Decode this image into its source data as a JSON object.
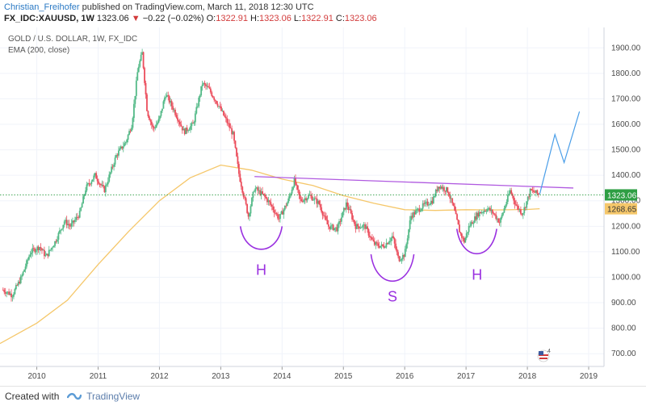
{
  "header": {
    "author": "Christian_Freihofer",
    "published": "published on TradingView.com, March 11, 2018 12:30 UTC",
    "symbol": "FX_IDC:XAUUSD, 1W",
    "last": "1323.06",
    "change_arrow": "down-triangle-icon",
    "change": "−0.22 (−0.02%)",
    "o_label": "O:",
    "o_value": "1322.91",
    "h_label": "H:",
    "h_value": "1323.06",
    "l_label": "L:",
    "l_value": "1322.91",
    "c_label": "C:",
    "c_value": "1323.06"
  },
  "legend": {
    "line1": "GOLD / U.S. DOLLAR, 1W, FX_IDC",
    "line2": "EMA (200, close)"
  },
  "footer": {
    "created_with": "Created with",
    "brand": "TradingView"
  },
  "colors": {
    "up": "#53b987",
    "down": "#eb4d5c",
    "ema": "#f5c76a",
    "trendline": "#b05ae0",
    "projection": "#4a9ee8",
    "pattern": "#9a30e0",
    "last_price": "#2e9e44",
    "ema_label_bg": "#f5c76a",
    "grid": "#f0f3fa"
  },
  "chart_data": {
    "type": "candlestick",
    "title": "GOLD / U.S. DOLLAR, 1W, FX_IDC",
    "ylim": [
      650,
      1980
    ],
    "yticks": [
      700,
      800,
      900,
      1000,
      1100,
      1200,
      1300,
      1400,
      1500,
      1600,
      1700,
      1800,
      1900
    ],
    "ytick_labels": [
      "700.00",
      "800.00",
      "900.00",
      "1000.00",
      "1100.00",
      "1200.00",
      "1300.00",
      "1400.00",
      "1500.00",
      "1600.00",
      "1700.00",
      "1800.00",
      "1900.00"
    ],
    "xlim": [
      2009.4,
      2019.25
    ],
    "xticks": [
      2010,
      2011,
      2012,
      2013,
      2014,
      2015,
      2016,
      2017,
      2018,
      2019
    ],
    "xtick_labels": [
      "2010",
      "2011",
      "2012",
      "2013",
      "2014",
      "2015",
      "2016",
      "2017",
      "2018",
      "2019"
    ],
    "price_path": [
      [
        2009.45,
        950
      ],
      [
        2009.6,
        930
      ],
      [
        2009.75,
        1000
      ],
      [
        2009.9,
        1100
      ],
      [
        2010.05,
        1120
      ],
      [
        2010.15,
        1080
      ],
      [
        2010.3,
        1140
      ],
      [
        2010.45,
        1220
      ],
      [
        2010.55,
        1200
      ],
      [
        2010.7,
        1250
      ],
      [
        2010.8,
        1350
      ],
      [
        2010.95,
        1400
      ],
      [
        2011.1,
        1340
      ],
      [
        2011.3,
        1480
      ],
      [
        2011.45,
        1530
      ],
      [
        2011.55,
        1600
      ],
      [
        2011.65,
        1820
      ],
      [
        2011.72,
        1880
      ],
      [
        2011.8,
        1650
      ],
      [
        2011.9,
        1580
      ],
      [
        2012.0,
        1620
      ],
      [
        2012.1,
        1720
      ],
      [
        2012.25,
        1650
      ],
      [
        2012.4,
        1570
      ],
      [
        2012.55,
        1600
      ],
      [
        2012.7,
        1760
      ],
      [
        2012.8,
        1740
      ],
      [
        2012.95,
        1680
      ],
      [
        2013.1,
        1610
      ],
      [
        2013.2,
        1560
      ],
      [
        2013.3,
        1400
      ],
      [
        2013.45,
        1240
      ],
      [
        2013.55,
        1350
      ],
      [
        2013.7,
        1320
      ],
      [
        2013.8,
        1290
      ],
      [
        2013.95,
        1230
      ],
      [
        2014.1,
        1300
      ],
      [
        2014.2,
        1380
      ],
      [
        2014.3,
        1300
      ],
      [
        2014.45,
        1320
      ],
      [
        2014.6,
        1290
      ],
      [
        2014.75,
        1200
      ],
      [
        2014.9,
        1190
      ],
      [
        2015.05,
        1290
      ],
      [
        2015.2,
        1200
      ],
      [
        2015.35,
        1200
      ],
      [
        2015.5,
        1130
      ],
      [
        2015.65,
        1120
      ],
      [
        2015.8,
        1160
      ],
      [
        2015.9,
        1070
      ],
      [
        2016.0,
        1090
      ],
      [
        2016.1,
        1240
      ],
      [
        2016.3,
        1280
      ],
      [
        2016.45,
        1300
      ],
      [
        2016.55,
        1360
      ],
      [
        2016.7,
        1340
      ],
      [
        2016.8,
        1270
      ],
      [
        2016.9,
        1175
      ],
      [
        2016.97,
        1140
      ],
      [
        2017.05,
        1200
      ],
      [
        2017.2,
        1250
      ],
      [
        2017.35,
        1270
      ],
      [
        2017.45,
        1250
      ],
      [
        2017.55,
        1215
      ],
      [
        2017.65,
        1290
      ],
      [
        2017.72,
        1340
      ],
      [
        2017.82,
        1280
      ],
      [
        2017.92,
        1250
      ],
      [
        2017.98,
        1290
      ],
      [
        2018.05,
        1340
      ],
      [
        2018.15,
        1330
      ],
      [
        2018.19,
        1323.06
      ]
    ],
    "ema": {
      "name": "EMA (200, close)",
      "last": 1268.65,
      "points": [
        [
          2009.4,
          740
        ],
        [
          2010.0,
          820
        ],
        [
          2010.5,
          910
        ],
        [
          2011.0,
          1050
        ],
        [
          2011.5,
          1180
        ],
        [
          2012.0,
          1300
        ],
        [
          2012.5,
          1390
        ],
        [
          2013.0,
          1440
        ],
        [
          2013.5,
          1420
        ],
        [
          2014.0,
          1385
        ],
        [
          2014.5,
          1360
        ],
        [
          2015.0,
          1320
        ],
        [
          2015.5,
          1290
        ],
        [
          2016.0,
          1265
        ],
        [
          2016.5,
          1262
        ],
        [
          2017.0,
          1265
        ],
        [
          2017.5,
          1264
        ],
        [
          2018.0,
          1266
        ],
        [
          2018.2,
          1268.65
        ]
      ]
    },
    "last_price": 1323.06,
    "last_price_label": "1323.06",
    "ema_label": "1268.65",
    "annotations": {
      "trendline": [
        [
          2013.55,
          1395
        ],
        [
          2018.75,
          1350
        ]
      ],
      "projection": [
        [
          2018.2,
          1325
        ],
        [
          2018.45,
          1560
        ],
        [
          2018.6,
          1450
        ],
        [
          2018.85,
          1650
        ]
      ],
      "pattern_labels": [
        "H",
        "S",
        "H"
      ]
    }
  }
}
